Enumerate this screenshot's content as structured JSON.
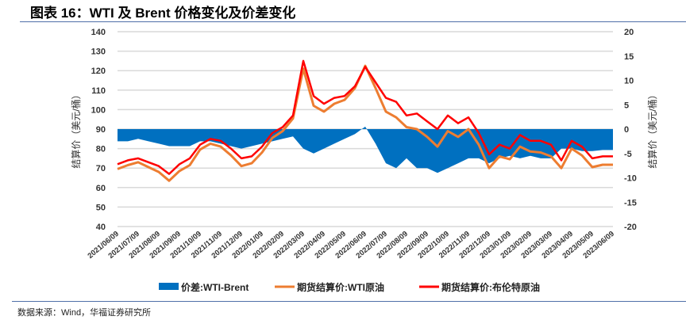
{
  "title": "图表 16：WTI 及 Brent 价格变化及价差变化",
  "source": "数据来源：Wind，华福证券研究所",
  "chart_data": {
    "type": "line",
    "title": "图表 16：WTI 及 Brent 价格变化及价差变化",
    "ylabel": "结算价（美元/桶）",
    "ylabel_right": "结算价（美元/桶）",
    "ylim": [
      40,
      140
    ],
    "ylim_right": [
      -20,
      20
    ],
    "yticks": [
      "140",
      "130",
      "120",
      "110",
      "100",
      "90",
      "80",
      "70",
      "60",
      "50",
      "40"
    ],
    "yticks_right": [
      "20",
      "15",
      "10",
      "5",
      "0",
      "-5",
      "-10",
      "-15",
      "-20"
    ],
    "xticks": [
      "2021/06/09",
      "2021/07/09",
      "2021/08/09",
      "2021/09/09",
      "2021/10/09",
      "2021/11/09",
      "2021/12/09",
      "2022/01/09",
      "2022/02/09",
      "2022/03/09",
      "2022/04/09",
      "2022/05/09",
      "2022/06/09",
      "2022/07/09",
      "2022/08/09",
      "2022/09/09",
      "2022/10/09",
      "2022/11/09",
      "2022/12/09",
      "2023/01/09",
      "2023/02/09",
      "2023/03/09",
      "2023/04/09",
      "2023/05/09",
      "2023/06/09"
    ],
    "grid": true,
    "legend_position": "bottom",
    "colors": {
      "spread": "#0070C0",
      "wti": "#ED7D31",
      "brent": "#FF0000",
      "grid": "#d9d9d9"
    },
    "x_months_from_start": [
      0,
      0.5,
      1,
      1.5,
      2,
      2.5,
      3,
      3.5,
      4,
      4.5,
      5,
      5.5,
      6,
      6.5,
      7,
      7.5,
      8,
      8.5,
      9,
      9.5,
      10,
      10.5,
      11,
      11.5,
      12,
      12.5,
      13,
      13.5,
      14,
      14.5,
      15,
      15.5,
      16,
      16.5,
      17,
      17.5,
      18,
      18.5,
      19,
      19.5,
      20,
      20.5,
      21,
      21.5,
      22,
      22.5,
      23,
      23.5,
      24
    ],
    "series": [
      {
        "name": "价差:WTI-Brent",
        "type": "area",
        "axis": "right",
        "values": [
          -2.5,
          -2.5,
          -2,
          -2.5,
          -3,
          -3.5,
          -3.5,
          -3.5,
          -2.5,
          -2.5,
          -3,
          -3.5,
          -4,
          -3.5,
          -3,
          -2.5,
          -2,
          -1.5,
          -4,
          -5,
          -4,
          -3,
          -2,
          -1,
          0.5,
          -3,
          -7,
          -8,
          -6,
          -8,
          -8,
          -9,
          -8,
          -7,
          -6,
          -6,
          -7,
          -6,
          -5.5,
          -6,
          -5.5,
          -6,
          -6,
          -4,
          -4,
          -4.5,
          -4.5,
          -4.3,
          -4.3
        ]
      },
      {
        "name": "期货结算价:WTI原油",
        "type": "line",
        "axis": "left",
        "values": [
          69.5,
          71.5,
          73,
          70.5,
          68,
          63.5,
          68.5,
          71.5,
          79.5,
          82.5,
          81,
          76.5,
          71,
          72.5,
          78,
          85.5,
          89,
          95.5,
          121,
          102,
          99,
          103,
          105,
          111,
          122.5,
          111,
          99,
          96,
          91,
          90,
          86,
          81,
          89,
          86,
          90,
          82,
          70,
          76,
          74.5,
          81,
          78.5,
          78,
          76,
          70,
          80,
          76.5,
          70.5,
          71.7,
          71.7
        ]
      },
      {
        "name": "期货结算价:布伦特原油",
        "type": "line",
        "axis": "left",
        "values": [
          72,
          74,
          75,
          73,
          71,
          67,
          72,
          75,
          82,
          85,
          84,
          80,
          75,
          76,
          81,
          88,
          91,
          97,
          125,
          107,
          103,
          106,
          107,
          112,
          122,
          114,
          106,
          104,
          97,
          98,
          94,
          90,
          97,
          93,
          96,
          88,
          77,
          82,
          80,
          87,
          84,
          84,
          82,
          74,
          84,
          81,
          75,
          76,
          76
        ]
      }
    ]
  }
}
